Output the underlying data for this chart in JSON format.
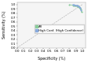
{
  "title": "",
  "xlabel": "Specificity (%)",
  "ylabel": "Sensitivity (%)",
  "xlim": [
    0.0,
    1.05
  ],
  "ylim": [
    0.0,
    1.05
  ],
  "xticks": [
    0.0,
    0.1,
    0.2,
    0.3,
    0.4,
    0.5,
    0.6,
    0.7,
    0.8,
    0.9,
    1.0
  ],
  "yticks": [
    0.0,
    0.1,
    0.2,
    0.3,
    0.4,
    0.5,
    0.6,
    0.7,
    0.8,
    0.9,
    1.0
  ],
  "xtick_labels": [
    "0.0",
    "0.1",
    "0.2",
    "0.3",
    "0.4",
    "0.5",
    "0.6",
    "0.7",
    "0.8",
    "0.9",
    "1.0"
  ],
  "ytick_labels": [
    "0.0",
    "0.1",
    "0.2",
    "0.3",
    "0.4",
    "0.5",
    "0.6",
    "0.7",
    "0.8",
    "0.9",
    "1.0"
  ],
  "background": "#f5f5f5",
  "diagonal_color": "#aaaaaa",
  "series_all": {
    "name": "All",
    "color": "#88cc99",
    "marker": "o",
    "markersize": 1.2,
    "linewidth": 0.6,
    "points": [
      [
        0.985,
        0.82
      ],
      [
        0.975,
        0.88
      ],
      [
        0.968,
        0.9
      ],
      [
        0.96,
        0.91
      ],
      [
        0.952,
        0.93
      ],
      [
        0.942,
        0.942
      ],
      [
        0.93,
        0.952
      ],
      [
        0.92,
        0.96
      ],
      [
        0.91,
        0.968
      ],
      [
        0.892,
        0.972
      ],
      [
        0.88,
        0.975
      ],
      [
        0.862,
        0.98
      ],
      [
        0.85,
        0.982
      ],
      [
        0.8,
        0.99
      ]
    ]
  },
  "series_hc": {
    "name": "High Conf. (High Confidence)",
    "color": "#88aadd",
    "marker": "o",
    "markersize": 1.2,
    "linewidth": 0.6,
    "points": [
      [
        0.975,
        0.872
      ],
      [
        0.962,
        0.92
      ],
      [
        0.952,
        0.942
      ],
      [
        0.94,
        0.958
      ],
      [
        0.93,
        0.968
      ],
      [
        0.91,
        0.978
      ],
      [
        0.89,
        0.982
      ],
      [
        0.87,
        0.988
      ],
      [
        0.85,
        0.992
      ]
    ]
  },
  "paired_lines_color": "#aabbcc",
  "paired_lines_lw": 0.4,
  "paired_pairs": [
    [
      [
        0.975,
        0.88
      ],
      [
        0.975,
        0.872
      ]
    ],
    [
      [
        0.952,
        0.93
      ],
      [
        0.952,
        0.942
      ]
    ],
    [
      [
        0.942,
        0.942
      ],
      [
        0.94,
        0.958
      ]
    ],
    [
      [
        0.91,
        0.968
      ],
      [
        0.91,
        0.978
      ]
    ],
    [
      [
        0.88,
        0.975
      ],
      [
        0.87,
        0.988
      ]
    ],
    [
      [
        0.85,
        0.982
      ],
      [
        0.85,
        0.992
      ]
    ]
  ],
  "legend_colors": [
    "#88cc99",
    "#88aadd"
  ],
  "legend_labels": [
    "All",
    "High Conf. (High Confidence)"
  ],
  "tick_fontsize": 3.0,
  "label_fontsize": 3.5,
  "legend_fontsize": 2.8
}
